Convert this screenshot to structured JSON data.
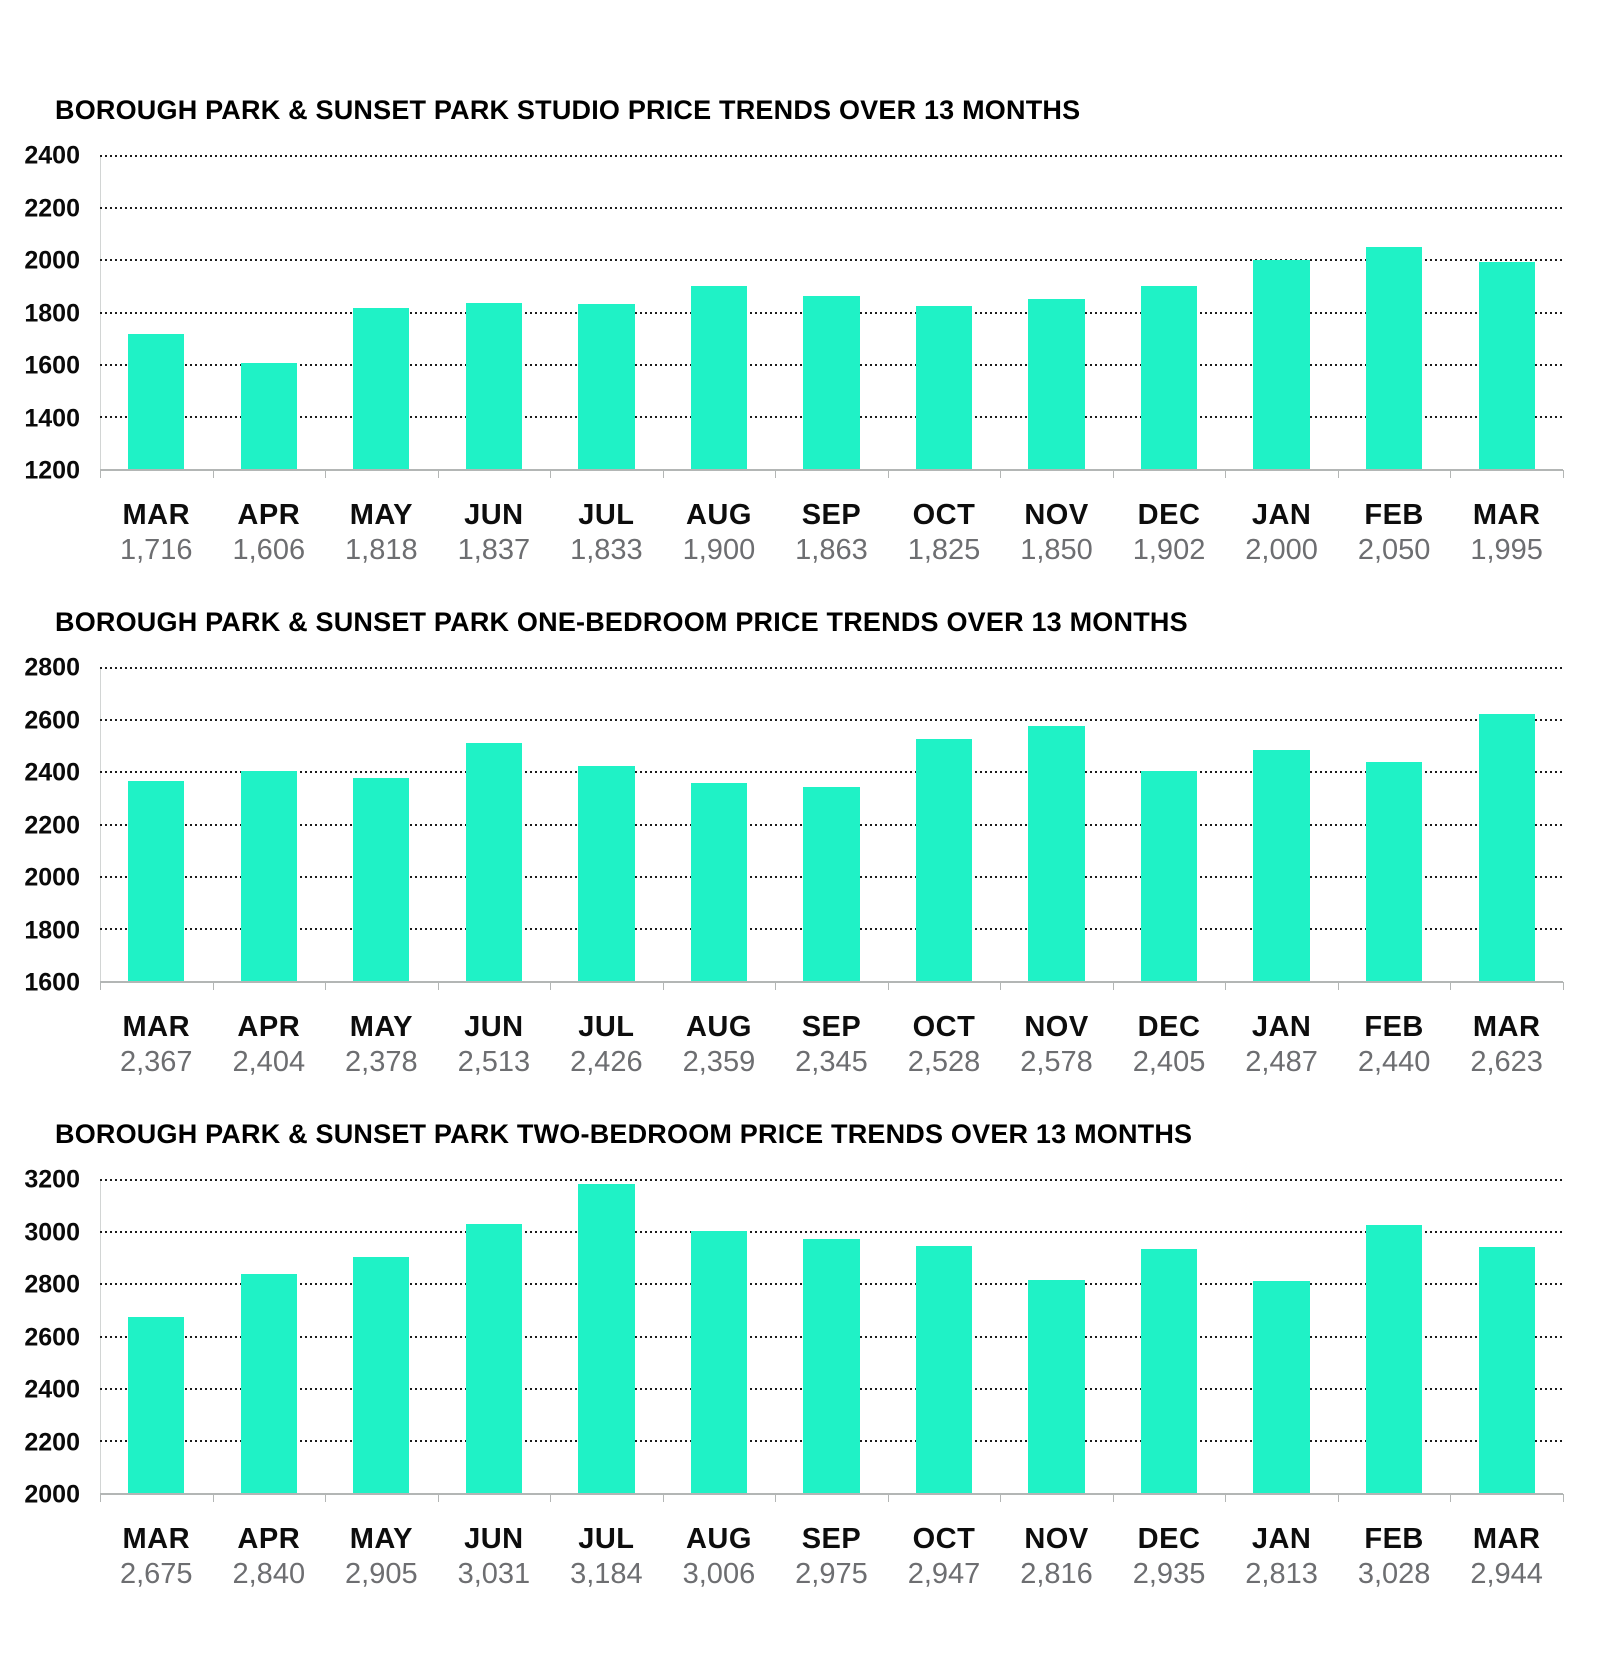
{
  "styles": {
    "bar_color": "#1ff2c6",
    "title_color": "#000000",
    "tick_label_color": "#0a0a0a",
    "month_label_color": "#0d0d0d",
    "value_label_color": "#6d6e71",
    "axis_color": "#b3b6b5",
    "gridline_color": "#1c1c1c",
    "gridline_style": "dotted"
  },
  "chart_data": [
    {
      "type": "bar",
      "title": "BOROUGH PARK & SUNSET PARK STUDIO PRICE TRENDS OVER 13 MONTHS",
      "categories": [
        "MAR",
        "APR",
        "MAY",
        "JUN",
        "JUL",
        "AUG",
        "SEP",
        "OCT",
        "NOV",
        "DEC",
        "JAN",
        "FEB",
        "MAR"
      ],
      "values": [
        1716,
        1606,
        1818,
        1837,
        1833,
        1900,
        1863,
        1825,
        1850,
        1902,
        2000,
        2050,
        1995
      ],
      "value_labels": [
        "1,716",
        "1,606",
        "1,818",
        "1,837",
        "1,833",
        "1,900",
        "1,863",
        "1,825",
        "1,850",
        "1,902",
        "2,000",
        "2,050",
        "1,995"
      ],
      "xlabel": "",
      "ylabel": "",
      "ylim": [
        1200,
        2400
      ],
      "yticks": [
        2400,
        2200,
        2000,
        1800,
        1600,
        1400,
        1200
      ],
      "grid": "horizontal dotted",
      "legend": "none"
    },
    {
      "type": "bar",
      "title": "BOROUGH PARK & SUNSET PARK ONE-BEDROOM PRICE TRENDS OVER 13 MONTHS",
      "categories": [
        "MAR",
        "APR",
        "MAY",
        "JUN",
        "JUL",
        "AUG",
        "SEP",
        "OCT",
        "NOV",
        "DEC",
        "JAN",
        "FEB",
        "MAR"
      ],
      "values": [
        2367,
        2404,
        2378,
        2513,
        2426,
        2359,
        2345,
        2528,
        2578,
        2405,
        2487,
        2440,
        2623
      ],
      "value_labels": [
        "2,367",
        "2,404",
        "2,378",
        "2,513",
        "2,426",
        "2,359",
        "2,345",
        "2,528",
        "2,578",
        "2,405",
        "2,487",
        "2,440",
        "2,623"
      ],
      "xlabel": "",
      "ylabel": "",
      "ylim": [
        1600,
        2800
      ],
      "yticks": [
        2800,
        2600,
        2400,
        2200,
        2000,
        1800,
        1600
      ],
      "grid": "horizontal dotted",
      "legend": "none"
    },
    {
      "type": "bar",
      "title": "BOROUGH PARK & SUNSET PARK  TWO-BEDROOM PRICE TRENDS OVER 13 MONTHS",
      "categories": [
        "MAR",
        "APR",
        "MAY",
        "JUN",
        "JUL",
        "AUG",
        "SEP",
        "OCT",
        "NOV",
        "DEC",
        "JAN",
        "FEB",
        "MAR"
      ],
      "values": [
        2675,
        2840,
        2905,
        3031,
        3184,
        3006,
        2975,
        2947,
        2816,
        2935,
        2813,
        3028,
        2944
      ],
      "value_labels": [
        "2,675",
        "2,840",
        "2,905",
        "3,031",
        "3,184",
        "3,006",
        "2,975",
        "2,947",
        "2,816",
        "2,935",
        "2,813",
        "3,028",
        "2,944"
      ],
      "xlabel": "",
      "ylabel": "",
      "ylim": [
        2000,
        3200
      ],
      "yticks": [
        3200,
        3000,
        2800,
        2600,
        2400,
        2200,
        2000
      ],
      "grid": "horizontal dotted",
      "legend": "none"
    }
  ]
}
